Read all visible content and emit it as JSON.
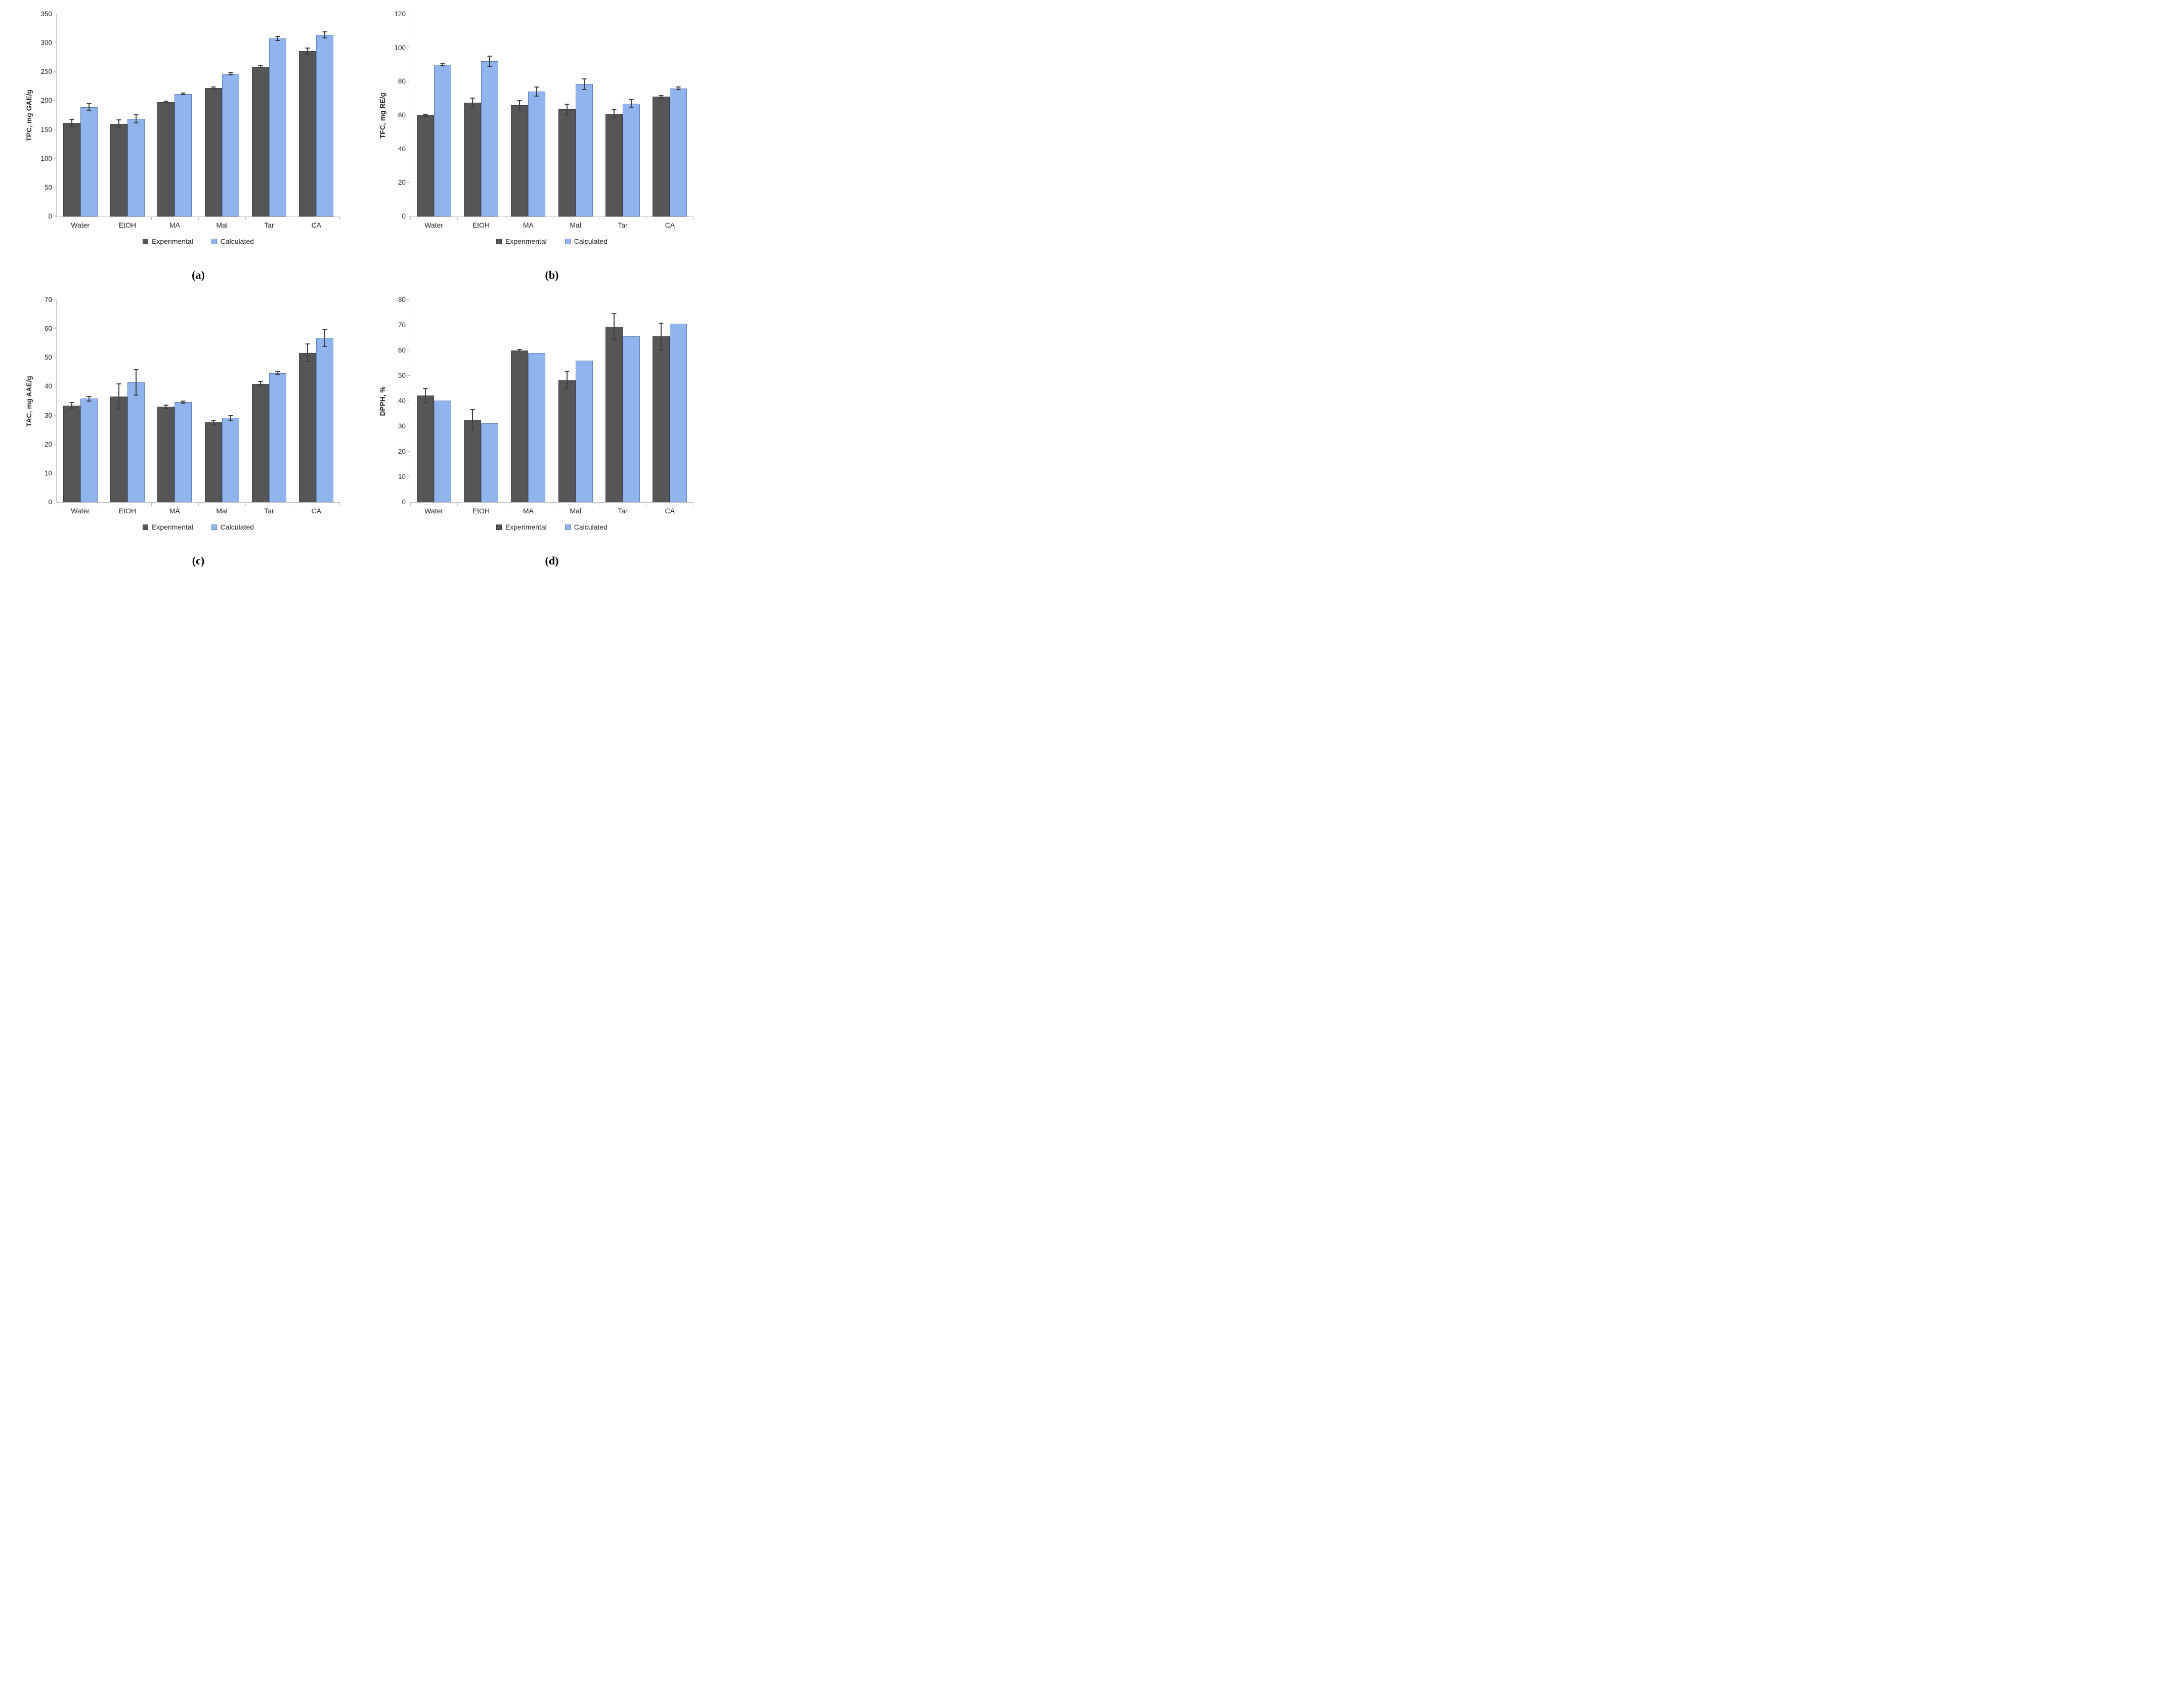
{
  "legend_labels": [
    "Experimental",
    "Calculated"
  ],
  "colors": {
    "experimental_fill": "#565659",
    "experimental_border": "#3c3c46",
    "calculated_fill": "#8fb4ee",
    "calculated_border": "#5e7fb2",
    "error_bar": "#3f3f3f",
    "axis_line": "#c3c3c3",
    "text": "#1f1f1f"
  },
  "chart_data": [
    {
      "type": "bar",
      "caption": "(a)",
      "ylabel": "TPC, mg GAE/g",
      "xlabel": "",
      "ylim": [
        0,
        350
      ],
      "ystep": 50,
      "grid": false,
      "legend_position": "bottom",
      "legend": [
        "Experimental",
        "Calculated"
      ],
      "categories": [
        "Water",
        "EtOH",
        "MA",
        "Mal",
        "Tar",
        "CA"
      ],
      "series": [
        {
          "name": "Experimental",
          "values": [
            162,
            160,
            198,
            222,
            259,
            286
          ],
          "errors": [
            7,
            8,
            2,
            3,
            3,
            6
          ]
        },
        {
          "name": "Calculated",
          "values": [
            189,
            169,
            212,
            247,
            308,
            314
          ],
          "errors": [
            7,
            8,
            2,
            3,
            4,
            6
          ]
        }
      ]
    },
    {
      "type": "bar",
      "caption": "(b)",
      "ylabel": "TFC, mg RE/g",
      "xlabel": "",
      "ylim": [
        0,
        120
      ],
      "ystep": 20,
      "grid": false,
      "legend_position": "bottom",
      "legend": [
        "Experimental",
        "Calculated"
      ],
      "categories": [
        "Water",
        "EtOH",
        "MA",
        "Mal",
        "Tar",
        "CA"
      ],
      "series": [
        {
          "name": "Experimental",
          "values": [
            60,
            67.5,
            66,
            63.5,
            61,
            71
          ],
          "errors": [
            1,
            3,
            3,
            3.5,
            2.5,
            1
          ]
        },
        {
          "name": "Calculated",
          "values": [
            90,
            92,
            74,
            78.5,
            67,
            76
          ],
          "errors": [
            1,
            3.5,
            3,
            3.5,
            2.5,
            1
          ]
        }
      ]
    },
    {
      "type": "bar",
      "caption": "(c)",
      "ylabel": "TAC, mg AAE/g",
      "xlabel": "",
      "ylim": [
        0,
        70
      ],
      "ystep": 10,
      "grid": false,
      "legend_position": "bottom",
      "legend": [
        "Experimental",
        "Calculated"
      ],
      "categories": [
        "Water",
        "EtOH",
        "MA",
        "Mal",
        "Tar",
        "CA"
      ],
      "series": [
        {
          "name": "Experimental",
          "values": [
            33.5,
            36.5,
            33,
            27.6,
            41,
            51.7
          ],
          "errors": [
            1.2,
            4.7,
            0.8,
            1,
            1,
            3.2
          ]
        },
        {
          "name": "Calculated",
          "values": [
            35.8,
            41.5,
            34.7,
            29.2,
            44.7,
            56.8
          ],
          "errors": [
            1,
            4.6,
            0.5,
            1,
            0.7,
            3
          ]
        }
      ]
    },
    {
      "type": "bar",
      "caption": "(d)",
      "ylabel": "DPPH, %",
      "xlabel": "",
      "ylim": [
        0,
        80
      ],
      "ystep": 10,
      "grid": false,
      "legend_position": "bottom",
      "legend": [
        "Experimental",
        "Calculated"
      ],
      "categories": [
        "Water",
        "EtOH",
        "MA",
        "Mal",
        "Tar",
        "CA"
      ],
      "series": [
        {
          "name": "Experimental",
          "values": [
            42.2,
            32.7,
            60,
            48.3,
            69.5,
            65.6
          ],
          "errors": [
            3,
            4.2,
            0.7,
            3.7,
            5.3,
            5.5
          ]
        },
        {
          "name": "Calculated",
          "values": [
            40.3,
            31.3,
            59,
            56,
            65.6,
            70.7
          ],
          "errors": [
            0,
            0,
            0,
            0,
            0,
            0
          ]
        }
      ]
    }
  ]
}
